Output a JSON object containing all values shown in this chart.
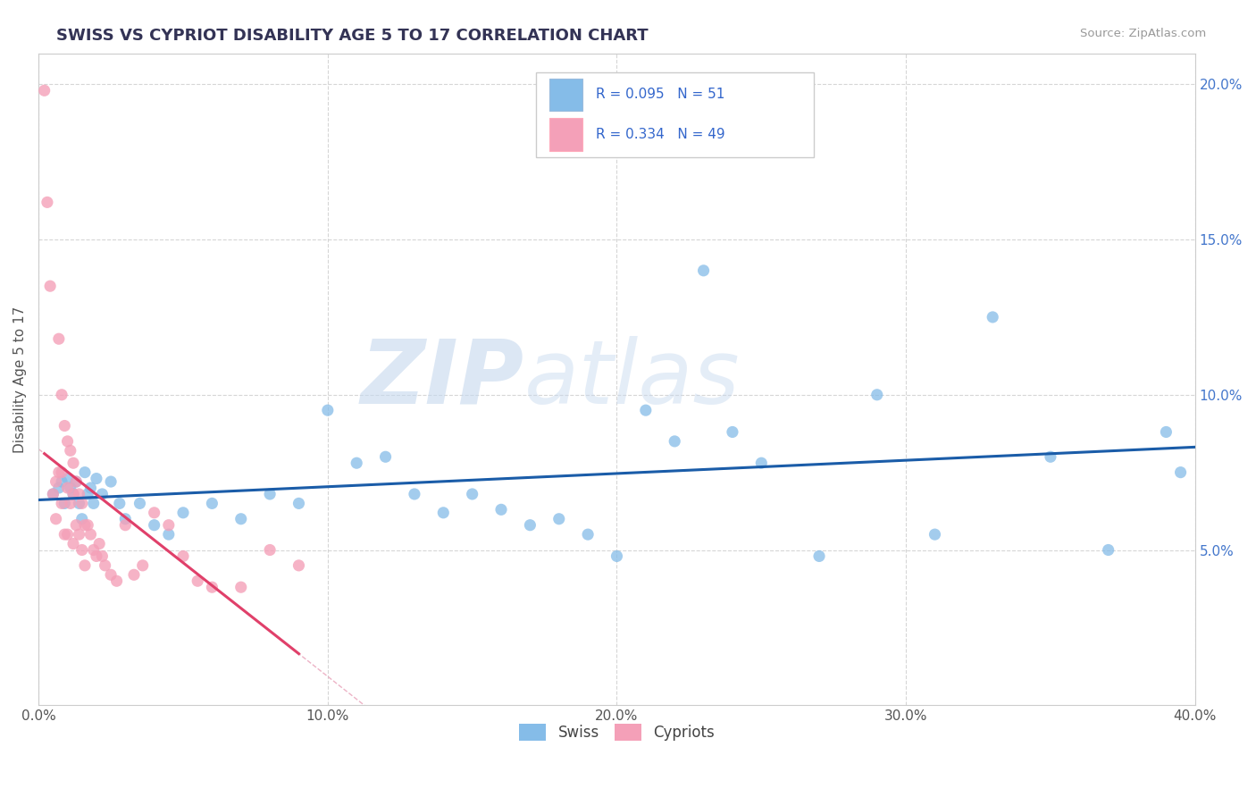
{
  "title": "SWISS VS CYPRIOT DISABILITY AGE 5 TO 17 CORRELATION CHART",
  "source_text": "Source: ZipAtlas.com",
  "ylabel": "Disability Age 5 to 17",
  "xlim": [
    0.0,
    0.4
  ],
  "ylim": [
    0.0,
    0.21
  ],
  "xtick_labels": [
    "0.0%",
    "10.0%",
    "20.0%",
    "30.0%",
    "40.0%"
  ],
  "xtick_vals": [
    0.0,
    0.1,
    0.2,
    0.3,
    0.4
  ],
  "ytick_labels": [
    "5.0%",
    "10.0%",
    "15.0%",
    "20.0%"
  ],
  "ytick_vals": [
    0.05,
    0.1,
    0.15,
    0.2
  ],
  "swiss_R": 0.095,
  "swiss_N": 51,
  "cypriot_R": 0.334,
  "cypriot_N": 49,
  "swiss_color": "#85bce8",
  "cypriot_color": "#f4a0b8",
  "swiss_line_color": "#1a5ca8",
  "cypriot_line_color": "#e0406a",
  "cypriot_dashed_color": "#e8a0b8",
  "watermark_zip": "ZIP",
  "watermark_atlas": "atlas",
  "background_color": "#ffffff",
  "swiss_points_x": [
    0.005,
    0.007,
    0.008,
    0.009,
    0.01,
    0.011,
    0.012,
    0.013,
    0.014,
    0.015,
    0.016,
    0.017,
    0.018,
    0.019,
    0.02,
    0.022,
    0.025,
    0.028,
    0.03,
    0.035,
    0.04,
    0.045,
    0.05,
    0.06,
    0.07,
    0.08,
    0.09,
    0.1,
    0.11,
    0.12,
    0.13,
    0.14,
    0.15,
    0.16,
    0.17,
    0.18,
    0.19,
    0.2,
    0.21,
    0.22,
    0.23,
    0.24,
    0.25,
    0.27,
    0.29,
    0.31,
    0.33,
    0.35,
    0.37,
    0.39,
    0.395
  ],
  "swiss_points_y": [
    0.068,
    0.07,
    0.072,
    0.065,
    0.073,
    0.07,
    0.068,
    0.072,
    0.065,
    0.06,
    0.075,
    0.068,
    0.07,
    0.065,
    0.073,
    0.068,
    0.072,
    0.065,
    0.06,
    0.065,
    0.058,
    0.055,
    0.062,
    0.065,
    0.06,
    0.068,
    0.065,
    0.095,
    0.078,
    0.08,
    0.068,
    0.062,
    0.068,
    0.063,
    0.058,
    0.06,
    0.055,
    0.048,
    0.095,
    0.085,
    0.14,
    0.088,
    0.078,
    0.048,
    0.1,
    0.055,
    0.125,
    0.08,
    0.05,
    0.088,
    0.075
  ],
  "cypriot_points_x": [
    0.002,
    0.003,
    0.004,
    0.005,
    0.006,
    0.006,
    0.007,
    0.007,
    0.008,
    0.008,
    0.008,
    0.009,
    0.009,
    0.01,
    0.01,
    0.01,
    0.011,
    0.011,
    0.012,
    0.012,
    0.012,
    0.013,
    0.013,
    0.014,
    0.014,
    0.015,
    0.015,
    0.016,
    0.016,
    0.017,
    0.018,
    0.019,
    0.02,
    0.021,
    0.022,
    0.023,
    0.025,
    0.027,
    0.03,
    0.033,
    0.036,
    0.04,
    0.045,
    0.05,
    0.055,
    0.06,
    0.07,
    0.08,
    0.09
  ],
  "cypriot_points_y": [
    0.198,
    0.162,
    0.135,
    0.068,
    0.072,
    0.06,
    0.118,
    0.075,
    0.1,
    0.075,
    0.065,
    0.09,
    0.055,
    0.085,
    0.07,
    0.055,
    0.082,
    0.065,
    0.078,
    0.068,
    0.052,
    0.072,
    0.058,
    0.068,
    0.055,
    0.065,
    0.05,
    0.058,
    0.045,
    0.058,
    0.055,
    0.05,
    0.048,
    0.052,
    0.048,
    0.045,
    0.042,
    0.04,
    0.058,
    0.042,
    0.045,
    0.062,
    0.058,
    0.048,
    0.04,
    0.038,
    0.038,
    0.05,
    0.045
  ]
}
